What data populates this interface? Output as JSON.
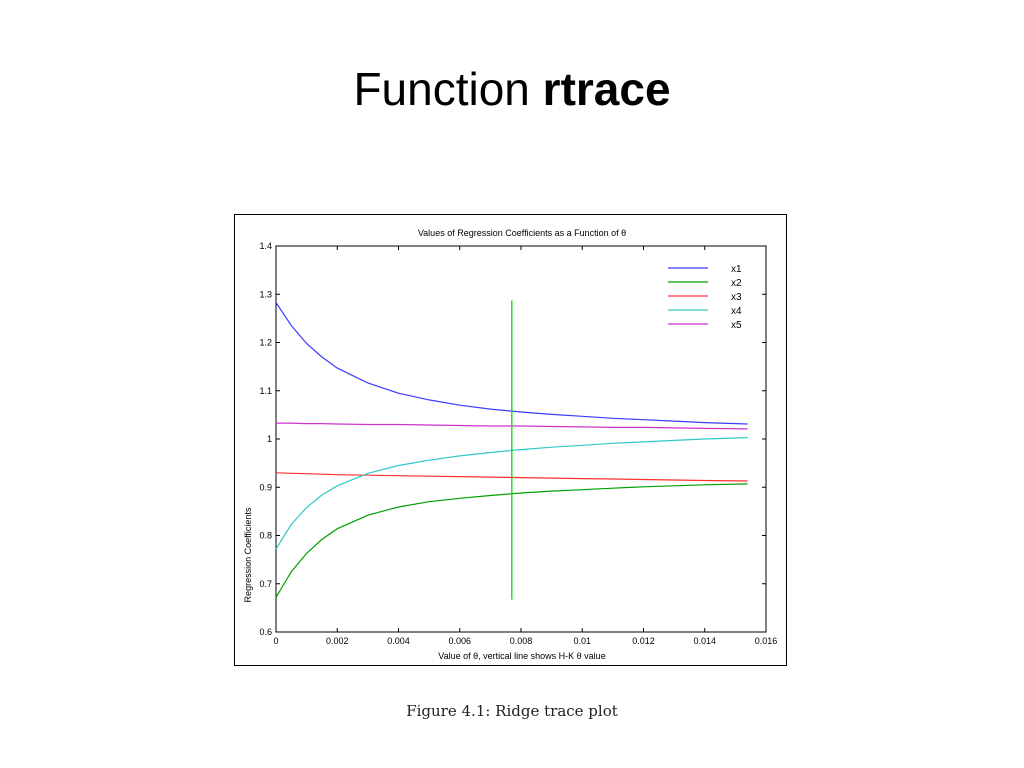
{
  "slide": {
    "title_plain": "Function ",
    "title_bold": "rtrace",
    "caption": "Figure 4.1: Ridge trace plot"
  },
  "chart_data": {
    "type": "line",
    "title": "Values of Regression Coefficients as a Function of θ",
    "xlabel": "Value of θ, vertical line shows H-K  θ value",
    "ylabel": "Regression Coefficients",
    "xlim": [
      0,
      0.016
    ],
    "ylim": [
      0.6,
      1.4
    ],
    "x_ticks": [
      "0",
      "0.002",
      "0.004",
      "0.006",
      "0.008",
      "0.01",
      "0.012",
      "0.014",
      "0.016"
    ],
    "y_ticks": [
      "0.6",
      "0.7",
      "0.8",
      "0.9",
      "1",
      "1.1",
      "1.2",
      "1.3",
      "1.4"
    ],
    "grid": false,
    "legend_position": "top-right",
    "x": [
      0,
      0.0005,
      0.001,
      0.0015,
      0.002,
      0.003,
      0.004,
      0.005,
      0.006,
      0.007,
      0.008,
      0.009,
      0.01,
      0.011,
      0.012,
      0.013,
      0.014,
      0.0154
    ],
    "series": [
      {
        "name": "x1",
        "color": "#3b3bff",
        "values": [
          1.283,
          1.235,
          1.198,
          1.17,
          1.147,
          1.116,
          1.095,
          1.081,
          1.07,
          1.062,
          1.056,
          1.051,
          1.047,
          1.043,
          1.04,
          1.037,
          1.034,
          1.031
        ]
      },
      {
        "name": "x2",
        "color": "#00a000",
        "values": [
          0.672,
          0.725,
          0.763,
          0.792,
          0.814,
          0.842,
          0.859,
          0.87,
          0.877,
          0.883,
          0.888,
          0.892,
          0.895,
          0.898,
          0.901,
          0.903,
          0.905,
          0.907
        ]
      },
      {
        "name": "x3",
        "color": "#ff3030",
        "values": [
          0.93,
          0.929,
          0.928,
          0.927,
          0.926,
          0.925,
          0.924,
          0.923,
          0.922,
          0.921,
          0.92,
          0.919,
          0.918,
          0.917,
          0.916,
          0.915,
          0.914,
          0.913
        ]
      },
      {
        "name": "x4",
        "color": "#30c8c8",
        "values": [
          0.772,
          0.823,
          0.858,
          0.884,
          0.903,
          0.929,
          0.945,
          0.956,
          0.965,
          0.972,
          0.978,
          0.983,
          0.987,
          0.991,
          0.994,
          0.997,
          1.0,
          1.003
        ]
      },
      {
        "name": "x5",
        "color": "#cc33cc",
        "values": [
          1.033,
          1.033,
          1.032,
          1.032,
          1.031,
          1.03,
          1.03,
          1.029,
          1.028,
          1.027,
          1.027,
          1.026,
          1.025,
          1.024,
          1.024,
          1.023,
          1.022,
          1.021
        ]
      }
    ],
    "vertical_line": {
      "x": 0.0077,
      "y_range": [
        0.667,
        1.287
      ],
      "color": "#00dd00"
    }
  }
}
